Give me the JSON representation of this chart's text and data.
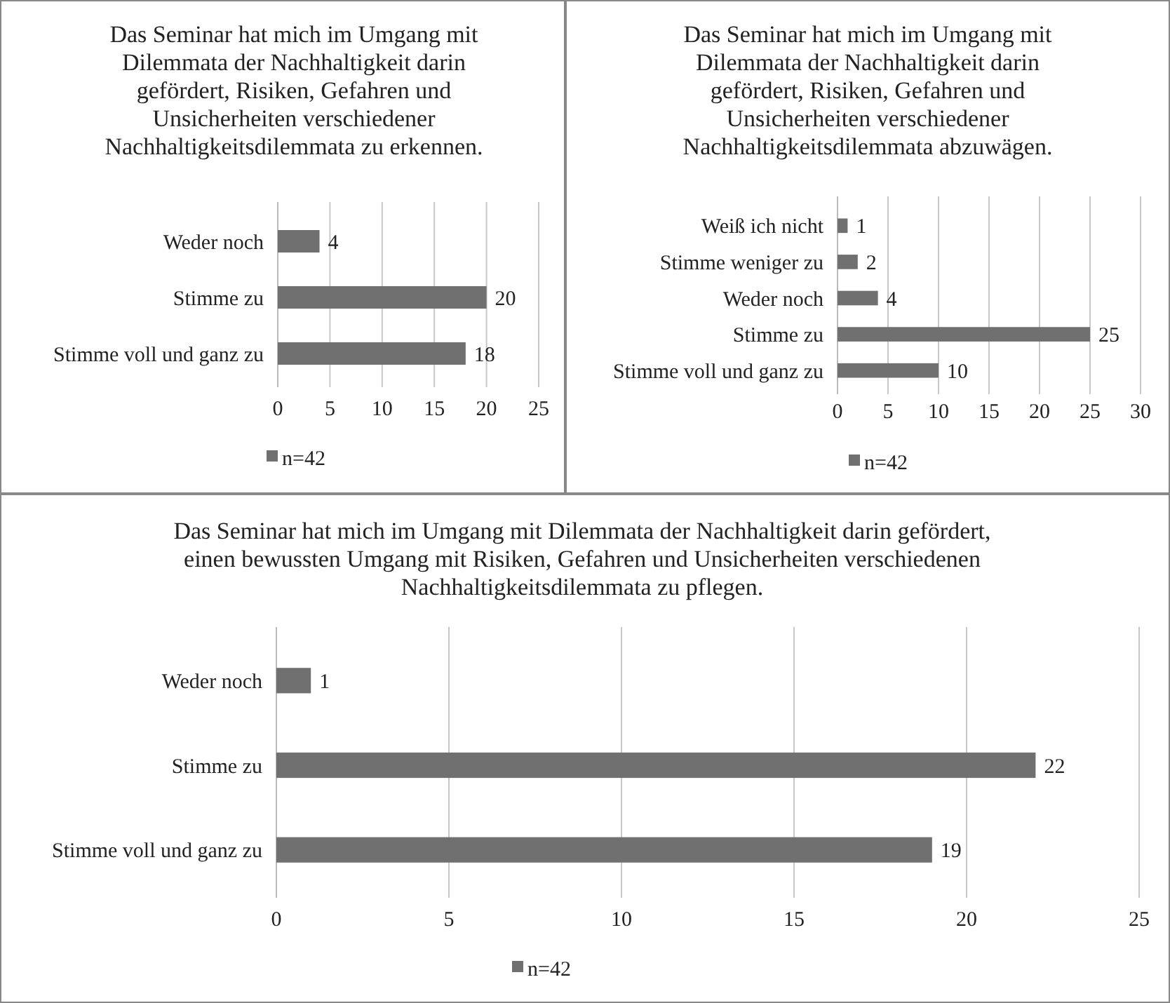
{
  "chart_data": [
    {
      "type": "bar",
      "orientation": "horizontal",
      "title": "Das Seminar hat mich im Umgang mit\nDilemmata der Nachhaltigkeit darin\ngefördert, Risiken, Gefahren und\nUnsicherheiten verschiedener\nNachhaltigkeitsdilemmata zu erkennen.",
      "categories": [
        "Weder noch",
        "Stimme zu",
        "Stimme voll und ganz zu"
      ],
      "series": [
        {
          "name": "n=42",
          "color": "#707070",
          "values": [
            4,
            20,
            18
          ]
        }
      ],
      "xlim": [
        0,
        25
      ],
      "xticks": [
        0,
        5,
        10,
        15,
        20,
        25
      ],
      "grid": "x",
      "data_labels": true,
      "legend": "bottom"
    },
    {
      "type": "bar",
      "orientation": "horizontal",
      "title": "Das Seminar hat mich im Umgang mit\nDilemmata der Nachhaltigkeit darin\ngefördert, Risiken, Gefahren und\nUnsicherheiten verschiedener\nNachhaltigkeitsdilemmata abzuwägen.",
      "categories": [
        "Weiß ich nicht",
        "Stimme weniger zu",
        "Weder noch",
        "Stimme zu",
        "Stimme voll und ganz zu"
      ],
      "series": [
        {
          "name": "n=42",
          "color": "#707070",
          "values": [
            1,
            2,
            4,
            25,
            10
          ]
        }
      ],
      "xlim": [
        0,
        30
      ],
      "xticks": [
        0,
        5,
        10,
        15,
        20,
        25,
        30
      ],
      "grid": "x",
      "data_labels": true,
      "legend": "bottom"
    },
    {
      "type": "bar",
      "orientation": "horizontal",
      "title": "Das Seminar hat mich im Umgang mit Dilemmata der Nachhaltigkeit darin gefördert,\neinen bewussten Umgang mit Risiken, Gefahren und Unsicherheiten verschiedenen\nNachhaltigkeitsdilemmata zu pflegen.",
      "categories": [
        "Weder noch",
        "Stimme zu",
        "Stimme voll und ganz zu"
      ],
      "series": [
        {
          "name": "n=42",
          "color": "#707070",
          "values": [
            1,
            22,
            19
          ]
        }
      ],
      "xlim": [
        0,
        25
      ],
      "xticks": [
        0,
        5,
        10,
        15,
        20,
        25
      ],
      "grid": "x",
      "data_labels": true,
      "legend": "bottom"
    }
  ]
}
